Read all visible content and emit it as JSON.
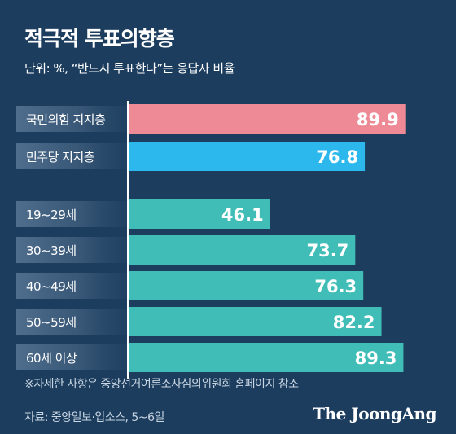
{
  "header": {
    "title": "적극적 투표의향층",
    "subtitle": "단위: %, “반드시 투표한다”는 응답자 비율"
  },
  "footer": {
    "footnote": "※자세한 사항은 중앙선거여론조사심의위원회 홈페이지 참조",
    "source": "자료: 중앙일보·입소스, 5~6일",
    "brand": "The JoongAng"
  },
  "colors": {
    "background": "#1c3d5e",
    "party_group_1": "#ee8a95",
    "party_group_2": "#2cb8ec",
    "age_groups": "#40bdb6",
    "axis_line": "#ffffff"
  },
  "chart_data": {
    "type": "bar",
    "orientation": "horizontal",
    "title": "적극적 투표의향층",
    "subtitle": "단위: %, “반드시 투표한다”는 응답자 비율",
    "xlim": [
      0,
      100
    ],
    "grid": false,
    "legend": "none",
    "groups": [
      {
        "categories": [
          "국민의힘 지지층",
          "민주당 지지층"
        ],
        "values": [
          89.9,
          76.8
        ],
        "colors": [
          "#ee8a95",
          "#2cb8ec"
        ]
      },
      {
        "categories": [
          "19~29세",
          "30~39세",
          "40~49세",
          "50~59세",
          "60세 이상"
        ],
        "values": [
          46.1,
          73.7,
          76.3,
          82.2,
          89.3
        ],
        "colors": [
          "#40bdb6",
          "#40bdb6",
          "#40bdb6",
          "#40bdb6",
          "#40bdb6"
        ]
      }
    ]
  }
}
